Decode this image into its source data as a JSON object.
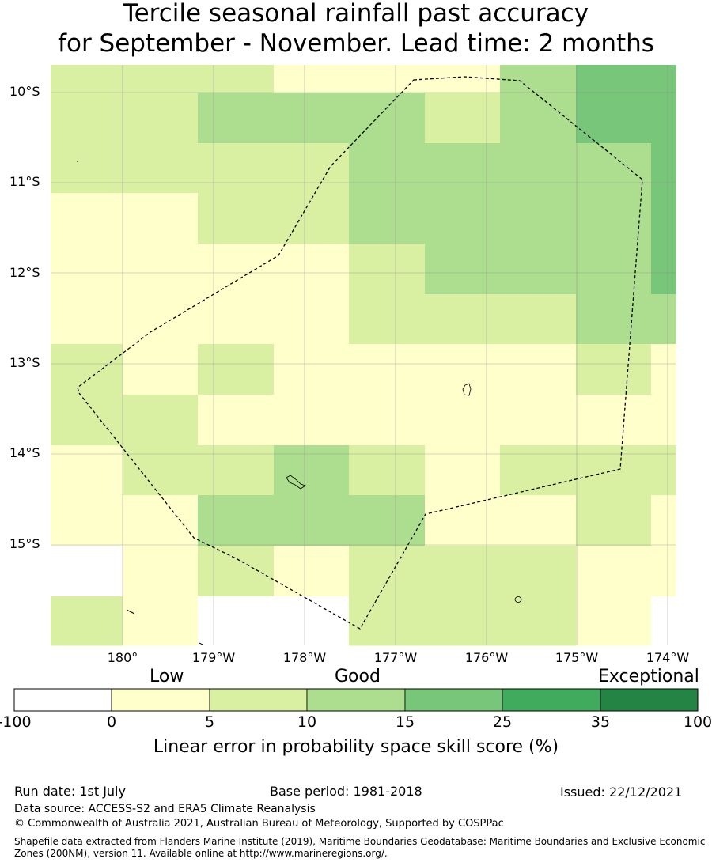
{
  "title": {
    "line1": "Tercile seasonal rainfall past accuracy",
    "line2": "for September - November. Lead time: 2 months"
  },
  "map": {
    "lat_labels": [
      "10°S",
      "11°S",
      "12°S",
      "13°S",
      "14°S",
      "15°S"
    ],
    "lon_labels": [
      "180°",
      "179°W",
      "178°W",
      "177°W",
      "176°W",
      "175°W",
      "174°W"
    ],
    "colors": {
      "c0": "#ffffcc",
      "c5": "#d9f0a3",
      "c10": "#addd8e",
      "c15": "#78c679",
      "c25": "#41ab5d",
      "c35": "#238443",
      "neg": "#ffffff"
    },
    "skill_grid_rows_top_to_bottom": [
      [
        "c5",
        "c5",
        "c5",
        "c0",
        "c0",
        "c0",
        "c10",
        "c15",
        "c15"
      ],
      [
        "c5",
        "c5",
        "c10",
        "c10",
        "c10",
        "c5",
        "c10",
        "c15",
        "c15"
      ],
      [
        "c5",
        "c5",
        "c5",
        "c5",
        "c10",
        "c10",
        "c10",
        "c10",
        "c15"
      ],
      [
        "c0",
        "c0",
        "c5",
        "c5",
        "c10",
        "c10",
        "c10",
        "c10",
        "c15"
      ],
      [
        "c0",
        "c0",
        "c0",
        "c0",
        "c5",
        "c10",
        "c10",
        "c10",
        "c15"
      ],
      [
        "c0",
        "c0",
        "c0",
        "c0",
        "c5",
        "c5",
        "c5",
        "c10",
        "c10"
      ],
      [
        "c5",
        "c0",
        "c5",
        "c0",
        "c0",
        "c0",
        "c0",
        "c5",
        "c0"
      ],
      [
        "c5",
        "c5",
        "c0",
        "c0",
        "c0",
        "c0",
        "c0",
        "c0",
        "c0"
      ],
      [
        "c0",
        "c5",
        "c5",
        "c10",
        "c5",
        "c0",
        "c5",
        "c5",
        "c5"
      ],
      [
        "c0",
        "c0",
        "c10",
        "c10",
        "c10",
        "c0",
        "c0",
        "c5",
        "c0"
      ],
      [
        "neg",
        "c0",
        "c5",
        "c0",
        "c5",
        "c5",
        "c5",
        "c0",
        "c0"
      ],
      [
        "c5",
        "c0",
        "neg",
        "neg",
        "c5",
        "c5",
        "c5",
        "c0",
        "neg"
      ]
    ]
  },
  "colorbar": {
    "categories": [
      "Low",
      "Good",
      "Exceptional"
    ],
    "ticks": [
      "-100",
      "0",
      "5",
      "10",
      "15",
      "25",
      "35",
      "100"
    ],
    "segment_colors": [
      "#ffffff",
      "#ffffcc",
      "#d9f0a3",
      "#addd8e",
      "#78c679",
      "#41ab5d",
      "#238443"
    ],
    "label": "Linear error in probability space skill score (%)"
  },
  "footer": {
    "run_date": "Run date: 1st July",
    "base_period": "Base period: 1981-2018",
    "issued": "Issued: 22/12/2021",
    "data_source": "Data source: ACCESS-S2 and ERA5 Climate Reanalysis",
    "copyright": "© Commonwealth of Australia 2021, Australian Bureau of Meteorology, Supported by COSPPac",
    "shapefile": "Shapefile data extracted from Flanders Marine Institute (2019), Maritime Boundaries Geodatabase: Maritime Boundaries and Exclusive Economic Zones (200NM), version 11. Available online at http://www.marineregions.org/."
  }
}
